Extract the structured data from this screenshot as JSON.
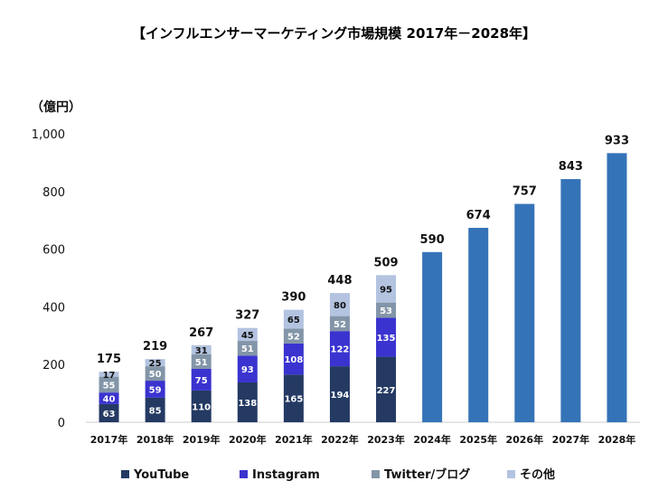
{
  "title": "【インフルエンサーマーケティング市場規模 2017年－2028年】",
  "unit": "（億円）",
  "colors": {
    "youtube": "#243a63",
    "instagram": "#3a33cf",
    "twitter": "#8395a8",
    "other": "#b3c3e0",
    "forecast": "#3573b8",
    "axis": "#cccccc"
  },
  "chart_data": {
    "type": "bar",
    "categories": [
      "2017年",
      "2018年",
      "2019年",
      "2020年",
      "2021年",
      "2022年",
      "2023年",
      "2024年",
      "2025年",
      "2026年",
      "2027年",
      "2028年"
    ],
    "ylim": [
      0,
      1000
    ],
    "yticks": [
      0,
      200,
      400,
      600,
      800,
      1000
    ],
    "ytick_labels": [
      "0",
      "200",
      "400",
      "600",
      "800",
      "1,000"
    ],
    "grid": false,
    "legend_position": "bottom",
    "series": [
      {
        "name": "YouTube",
        "key": "youtube",
        "values": [
          63,
          85,
          110,
          138,
          165,
          194,
          227,
          null,
          null,
          null,
          null,
          null
        ]
      },
      {
        "name": "Instagram",
        "key": "instagram",
        "values": [
          40,
          59,
          75,
          93,
          108,
          122,
          135,
          null,
          null,
          null,
          null,
          null
        ]
      },
      {
        "name": "Twitter/ブログ",
        "key": "twitter",
        "values": [
          55,
          50,
          51,
          51,
          52,
          52,
          53,
          null,
          null,
          null,
          null,
          null
        ]
      },
      {
        "name": "その他",
        "key": "other",
        "values": [
          17,
          25,
          31,
          45,
          65,
          80,
          95,
          null,
          null,
          null,
          null,
          null
        ]
      }
    ],
    "totals": [
      175,
      219,
      267,
      327,
      390,
      448,
      509,
      590,
      674,
      757,
      843,
      933
    ]
  }
}
